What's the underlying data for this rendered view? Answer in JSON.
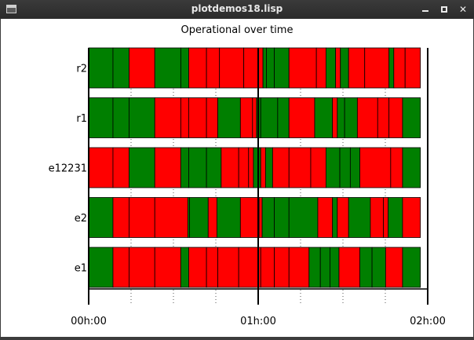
{
  "window": {
    "title": "plotdemos18.lisp",
    "controls": {
      "minimize": "minimize",
      "maximize": "maximize",
      "close": "✕"
    }
  },
  "colors": {
    "on": "#ff0000",
    "off": "#007f00",
    "titlebar": "#2e2e2e"
  },
  "chart_data": {
    "type": "bar",
    "subtype": "state-timeline",
    "title": "Operational over time",
    "xlabel": "",
    "ylabel": "",
    "x_unit": "minutes",
    "xlim": [
      0,
      120
    ],
    "ticks": [
      {
        "value": 0,
        "label": "00h:00"
      },
      {
        "value": 60,
        "label": "01h:00"
      },
      {
        "value": 120,
        "label": "02h:00"
      }
    ],
    "minor_ticks": [
      15,
      30,
      45,
      75,
      90,
      105
    ],
    "grid": true,
    "legend": "none",
    "lanes": [
      {
        "name": "r2",
        "segments": [
          {
            "start": 0.0,
            "end": 8.6,
            "state": "G"
          },
          {
            "start": 8.6,
            "end": 14.3,
            "state": "G"
          },
          {
            "start": 14.3,
            "end": 23.4,
            "state": "R"
          },
          {
            "start": 23.4,
            "end": 32.6,
            "state": "G"
          },
          {
            "start": 32.6,
            "end": 35.4,
            "state": "G"
          },
          {
            "start": 35.4,
            "end": 41.7,
            "state": "R"
          },
          {
            "start": 41.7,
            "end": 46.3,
            "state": "R"
          },
          {
            "start": 46.3,
            "end": 54.9,
            "state": "R"
          },
          {
            "start": 54.9,
            "end": 61.7,
            "state": "R"
          },
          {
            "start": 61.7,
            "end": 62.9,
            "state": "G"
          },
          {
            "start": 62.9,
            "end": 65.7,
            "state": "G"
          },
          {
            "start": 65.7,
            "end": 70.9,
            "state": "G"
          },
          {
            "start": 70.9,
            "end": 80.6,
            "state": "R"
          },
          {
            "start": 80.6,
            "end": 84.0,
            "state": "R"
          },
          {
            "start": 84.0,
            "end": 87.4,
            "state": "G"
          },
          {
            "start": 87.4,
            "end": 89.1,
            "state": "R"
          },
          {
            "start": 89.1,
            "end": 92.0,
            "state": "G"
          },
          {
            "start": 92.0,
            "end": 97.7,
            "state": "R"
          },
          {
            "start": 97.7,
            "end": 106.3,
            "state": "R"
          },
          {
            "start": 106.3,
            "end": 108.0,
            "state": "G"
          },
          {
            "start": 108.0,
            "end": 112.0,
            "state": "R"
          },
          {
            "start": 112.0,
            "end": 117.4,
            "state": "R"
          }
        ]
      },
      {
        "name": "r1",
        "segments": [
          {
            "start": 0.0,
            "end": 8.6,
            "state": "G"
          },
          {
            "start": 8.6,
            "end": 14.3,
            "state": "G"
          },
          {
            "start": 14.3,
            "end": 23.4,
            "state": "G"
          },
          {
            "start": 23.4,
            "end": 32.6,
            "state": "R"
          },
          {
            "start": 32.6,
            "end": 35.4,
            "state": "R"
          },
          {
            "start": 35.4,
            "end": 41.7,
            "state": "R"
          },
          {
            "start": 41.7,
            "end": 45.7,
            "state": "R"
          },
          {
            "start": 45.7,
            "end": 53.7,
            "state": "G"
          },
          {
            "start": 53.7,
            "end": 58.0,
            "state": "R"
          },
          {
            "start": 58.0,
            "end": 59.4,
            "state": "R"
          },
          {
            "start": 59.4,
            "end": 60.9,
            "state": "G"
          },
          {
            "start": 60.9,
            "end": 66.9,
            "state": "G"
          },
          {
            "start": 66.9,
            "end": 70.9,
            "state": "G"
          },
          {
            "start": 70.9,
            "end": 80.0,
            "state": "R"
          },
          {
            "start": 80.0,
            "end": 86.3,
            "state": "G"
          },
          {
            "start": 86.3,
            "end": 88.0,
            "state": "R"
          },
          {
            "start": 88.0,
            "end": 90.6,
            "state": "G"
          },
          {
            "start": 90.6,
            "end": 95.1,
            "state": "G"
          },
          {
            "start": 95.1,
            "end": 102.3,
            "state": "R"
          },
          {
            "start": 102.3,
            "end": 106.3,
            "state": "R"
          },
          {
            "start": 106.3,
            "end": 111.1,
            "state": "R"
          },
          {
            "start": 111.1,
            "end": 117.4,
            "state": "G"
          }
        ]
      },
      {
        "name": "e12231",
        "segments": [
          {
            "start": 0.0,
            "end": 8.6,
            "state": "R"
          },
          {
            "start": 8.6,
            "end": 14.3,
            "state": "R"
          },
          {
            "start": 14.3,
            "end": 23.4,
            "state": "G"
          },
          {
            "start": 23.4,
            "end": 32.6,
            "state": "R"
          },
          {
            "start": 32.6,
            "end": 35.4,
            "state": "G"
          },
          {
            "start": 35.4,
            "end": 41.7,
            "state": "G"
          },
          {
            "start": 41.7,
            "end": 46.9,
            "state": "G"
          },
          {
            "start": 46.9,
            "end": 53.1,
            "state": "R"
          },
          {
            "start": 53.1,
            "end": 56.6,
            "state": "R"
          },
          {
            "start": 56.6,
            "end": 58.3,
            "state": "R"
          },
          {
            "start": 58.3,
            "end": 60.9,
            "state": "G"
          },
          {
            "start": 60.9,
            "end": 62.6,
            "state": "R"
          },
          {
            "start": 62.6,
            "end": 65.1,
            "state": "G"
          },
          {
            "start": 65.1,
            "end": 70.9,
            "state": "R"
          },
          {
            "start": 70.9,
            "end": 78.6,
            "state": "R"
          },
          {
            "start": 78.6,
            "end": 84.0,
            "state": "R"
          },
          {
            "start": 84.0,
            "end": 88.9,
            "state": "G"
          },
          {
            "start": 88.9,
            "end": 92.6,
            "state": "G"
          },
          {
            "start": 92.6,
            "end": 96.0,
            "state": "G"
          },
          {
            "start": 96.0,
            "end": 106.9,
            "state": "R"
          },
          {
            "start": 106.9,
            "end": 111.1,
            "state": "R"
          },
          {
            "start": 111.1,
            "end": 117.4,
            "state": "G"
          }
        ]
      },
      {
        "name": "e2",
        "segments": [
          {
            "start": 0.0,
            "end": 8.6,
            "state": "G"
          },
          {
            "start": 8.6,
            "end": 14.3,
            "state": "R"
          },
          {
            "start": 14.3,
            "end": 23.4,
            "state": "R"
          },
          {
            "start": 23.4,
            "end": 35.1,
            "state": "R"
          },
          {
            "start": 35.1,
            "end": 35.7,
            "state": "G"
          },
          {
            "start": 35.7,
            "end": 42.3,
            "state": "G"
          },
          {
            "start": 42.3,
            "end": 45.4,
            "state": "R"
          },
          {
            "start": 45.4,
            "end": 53.7,
            "state": "G"
          },
          {
            "start": 53.7,
            "end": 60.3,
            "state": "R"
          },
          {
            "start": 60.3,
            "end": 61.4,
            "state": "R"
          },
          {
            "start": 61.4,
            "end": 65.7,
            "state": "G"
          },
          {
            "start": 65.7,
            "end": 70.9,
            "state": "G"
          },
          {
            "start": 70.9,
            "end": 81.1,
            "state": "G"
          },
          {
            "start": 81.1,
            "end": 86.3,
            "state": "R"
          },
          {
            "start": 86.3,
            "end": 88.0,
            "state": "G"
          },
          {
            "start": 88.0,
            "end": 92.0,
            "state": "R"
          },
          {
            "start": 92.0,
            "end": 99.7,
            "state": "G"
          },
          {
            "start": 99.7,
            "end": 104.3,
            "state": "R"
          },
          {
            "start": 104.3,
            "end": 106.0,
            "state": "R"
          },
          {
            "start": 106.0,
            "end": 111.1,
            "state": "G"
          },
          {
            "start": 111.1,
            "end": 117.4,
            "state": "R"
          }
        ]
      },
      {
        "name": "e1",
        "segments": [
          {
            "start": 0.0,
            "end": 8.6,
            "state": "G"
          },
          {
            "start": 8.6,
            "end": 14.3,
            "state": "R"
          },
          {
            "start": 14.3,
            "end": 23.4,
            "state": "R"
          },
          {
            "start": 23.4,
            "end": 32.6,
            "state": "R"
          },
          {
            "start": 32.6,
            "end": 35.4,
            "state": "G"
          },
          {
            "start": 35.4,
            "end": 41.7,
            "state": "R"
          },
          {
            "start": 41.7,
            "end": 45.7,
            "state": "R"
          },
          {
            "start": 45.7,
            "end": 53.1,
            "state": "R"
          },
          {
            "start": 53.1,
            "end": 60.9,
            "state": "R"
          },
          {
            "start": 60.9,
            "end": 65.7,
            "state": "R"
          },
          {
            "start": 65.7,
            "end": 70.9,
            "state": "R"
          },
          {
            "start": 70.9,
            "end": 78.0,
            "state": "R"
          },
          {
            "start": 78.0,
            "end": 82.0,
            "state": "G"
          },
          {
            "start": 82.0,
            "end": 85.4,
            "state": "G"
          },
          {
            "start": 85.4,
            "end": 88.6,
            "state": "G"
          },
          {
            "start": 88.6,
            "end": 96.0,
            "state": "R"
          },
          {
            "start": 96.0,
            "end": 100.3,
            "state": "G"
          },
          {
            "start": 100.3,
            "end": 105.1,
            "state": "G"
          },
          {
            "start": 105.1,
            "end": 111.1,
            "state": "R"
          },
          {
            "start": 111.1,
            "end": 117.4,
            "state": "G"
          }
        ]
      }
    ]
  }
}
